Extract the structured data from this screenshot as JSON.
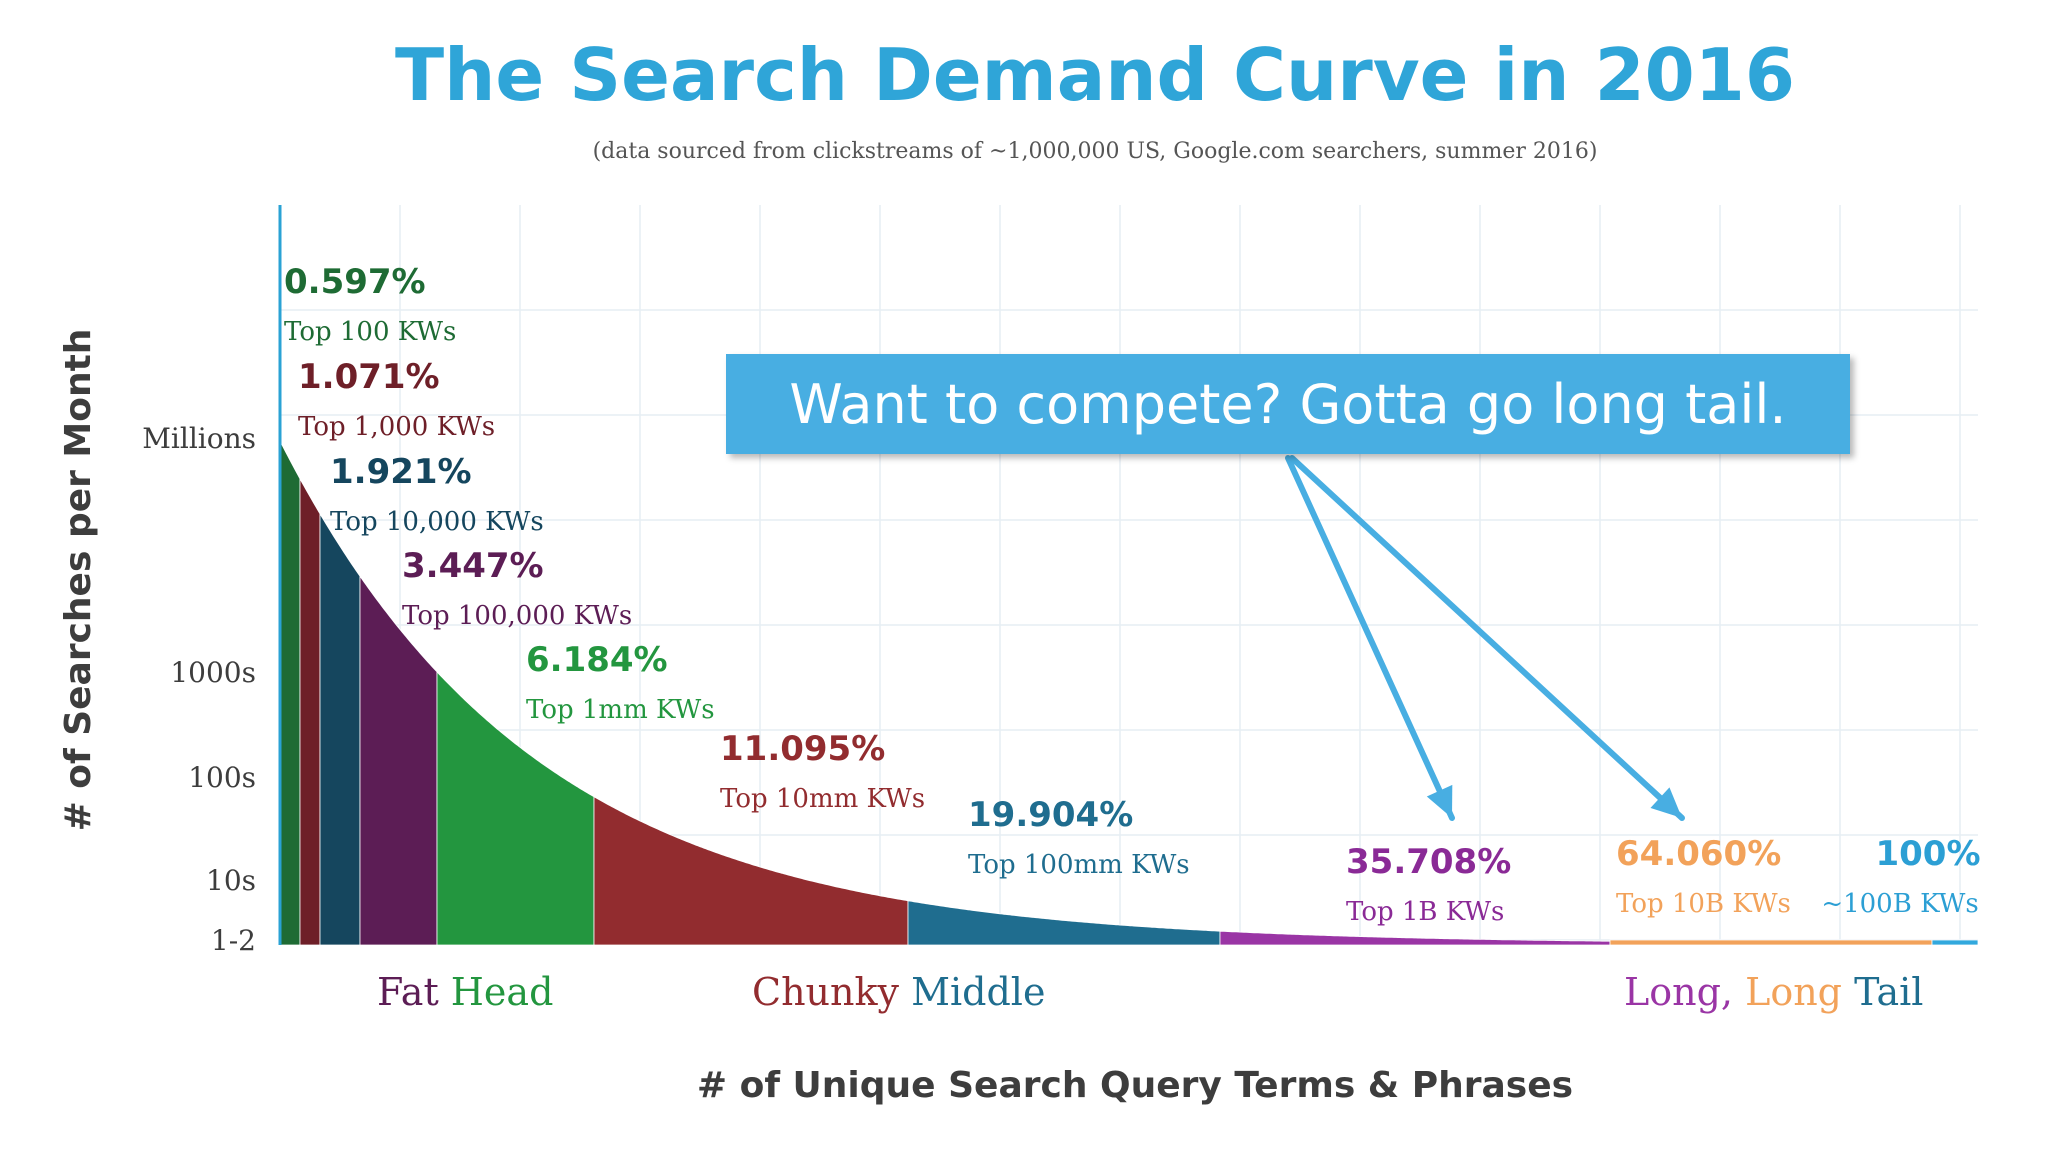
{
  "chart_data": {
    "type": "area",
    "title": "The Search Demand Curve in 2016",
    "subtitle": "(data sourced from clickstreams of ~1,000,000 US, Google.com searchers, summer 2016)",
    "xlabel": "# of Unique Search Query Terms & Phrases",
    "ylabel": "# of Searches per Month",
    "y_ticks": [
      "Millions",
      "1000s",
      "100s",
      "10s",
      "1-2"
    ],
    "grid": true,
    "segments": [
      {
        "pct": "0.597%",
        "label": "Top 100 KWs",
        "color": "#1e6b34",
        "text_color": "#1e6b34"
      },
      {
        "pct": "1.071%",
        "label": "Top 1,000 KWs",
        "color": "#6e1f28",
        "text_color": "#6e1f28"
      },
      {
        "pct": "1.921%",
        "label": "Top 10,000 KWs",
        "color": "#15465e",
        "text_color": "#15465e"
      },
      {
        "pct": "3.447%",
        "label": "Top 100,000 KWs",
        "color": "#5c1d55",
        "text_color": "#5c1d55"
      },
      {
        "pct": "6.184%",
        "label": "Top 1mm KWs",
        "color": "#23963f",
        "text_color": "#23963f"
      },
      {
        "pct": "11.095%",
        "label": "Top 10mm KWs",
        "color": "#922c2f",
        "text_color": "#922c2f"
      },
      {
        "pct": "19.904%",
        "label": "Top 100mm KWs",
        "color": "#1f6d8f",
        "text_color": "#1f6d8f"
      },
      {
        "pct": "35.708%",
        "label": "Top 1B KWs",
        "color": "#9a35a5",
        "text_color": "#8a2a96"
      },
      {
        "pct": "64.060%",
        "label": "Top 10B KWs",
        "color": "#f2a25a",
        "text_color": "#f2a25a"
      },
      {
        "pct": "100%",
        "label": "~100B KWs",
        "color": "#32a8dd",
        "text_color": "#2c9fd4"
      }
    ],
    "regions": [
      {
        "words": [
          "Fat",
          "Head"
        ],
        "colors": [
          "#5c1d55",
          "#23963f"
        ]
      },
      {
        "words": [
          "Chunky",
          "Middle"
        ],
        "colors": [
          "#922c2f",
          "#1f6d8f"
        ]
      },
      {
        "words": [
          "Long,",
          "Long",
          "Tail"
        ],
        "colors": [
          "#9a35a5",
          "#f2a25a",
          "#1f6d8f"
        ]
      }
    ]
  },
  "callout": {
    "text": "Want to compete? Gotta go long tail.",
    "color": "#48aee2"
  },
  "colors": {
    "title": "#2fa5d8",
    "axis_text": "#444444",
    "grid": "#e6eef4"
  }
}
